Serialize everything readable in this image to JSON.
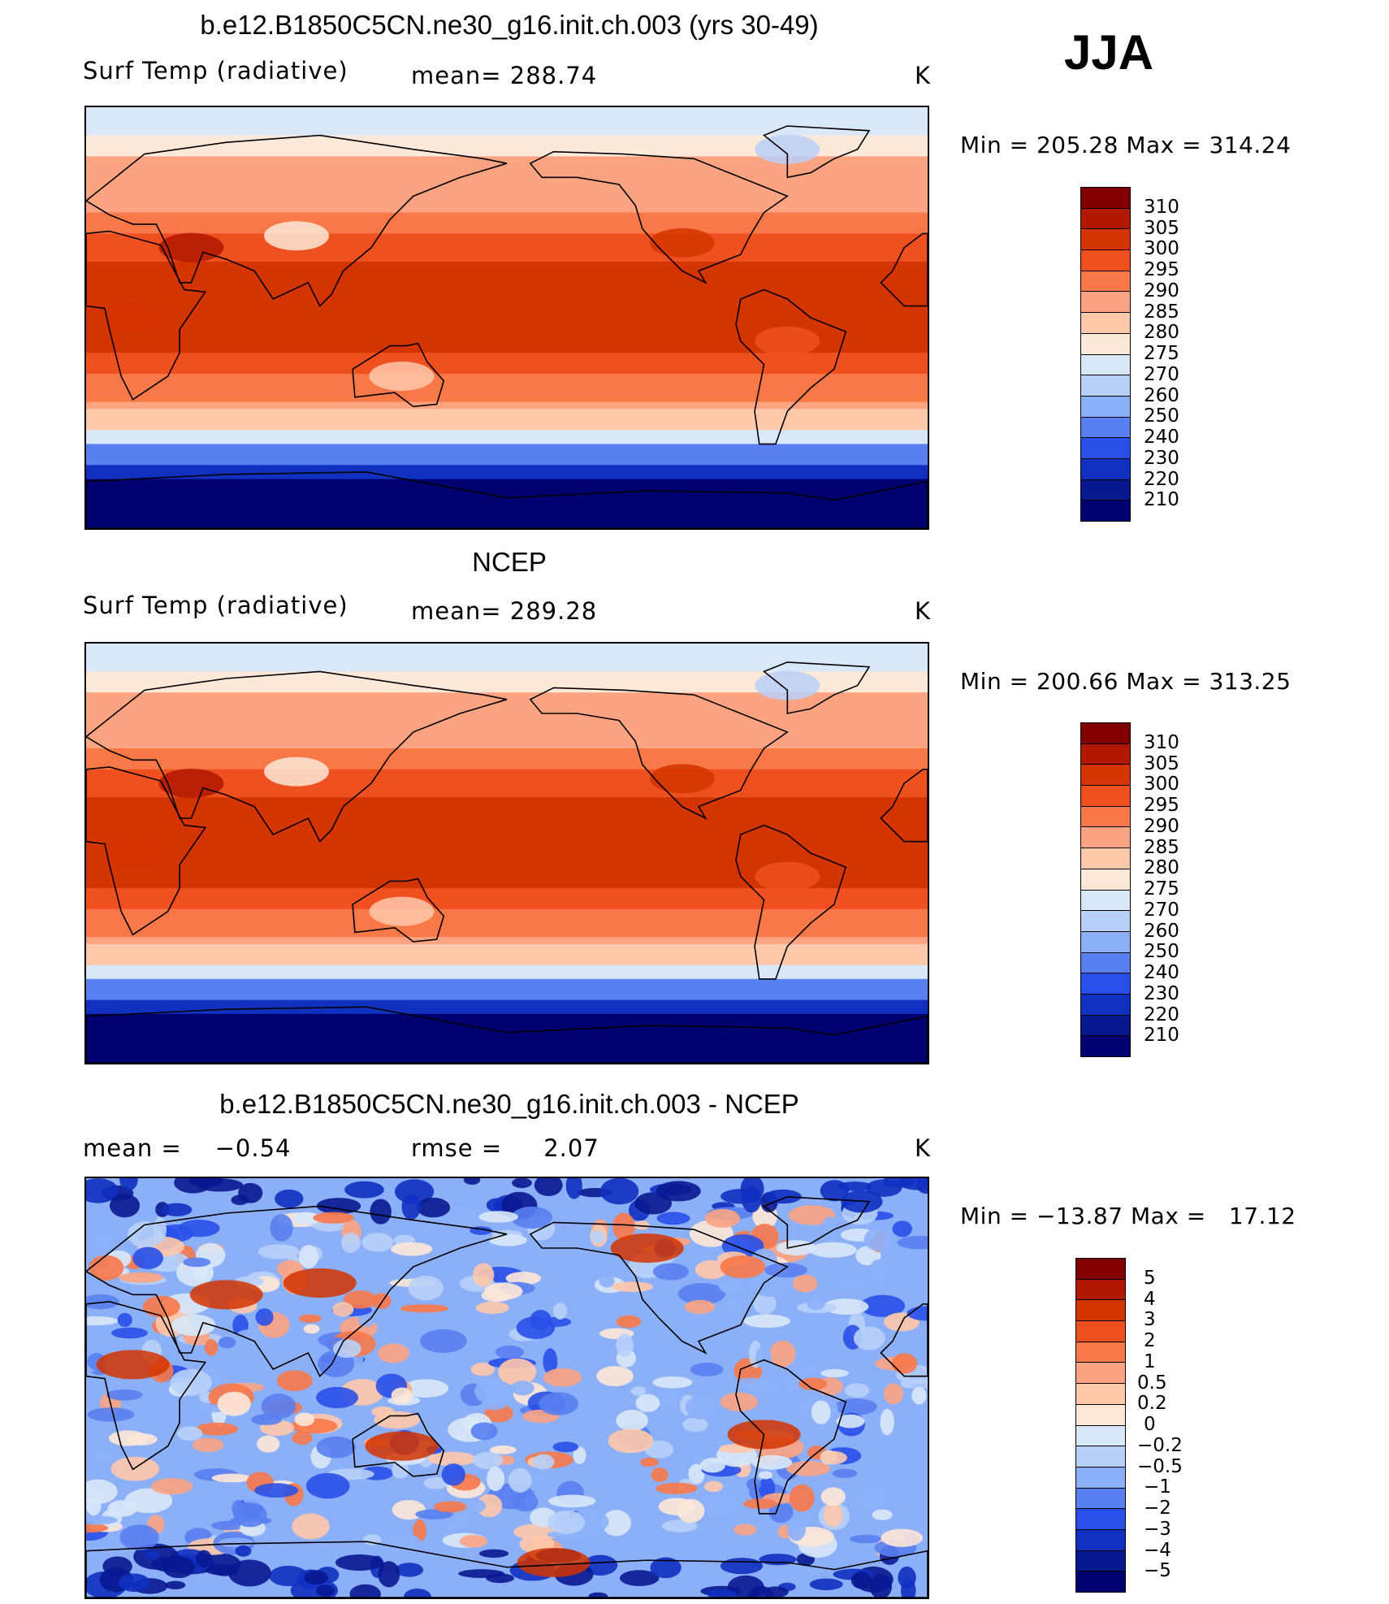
{
  "season": "JJA",
  "panels": [
    {
      "title": "b.e12.B1850C5CN.ne30_g16.init.ch.003 (yrs 30-49)",
      "left_label": "Surf Temp (radiative)",
      "stat_label": "mean= 288.74",
      "units": "K",
      "minmax": "Min = 205.28 Max = 314.24",
      "legend": {
        "labels": [
          "310",
          "305",
          "300",
          "295",
          "290",
          "285",
          "280",
          "275",
          "270",
          "260",
          "250",
          "240",
          "230",
          "220",
          "210"
        ],
        "colors": [
          "#800000",
          "#b01800",
          "#d43400",
          "#f05020",
          "#f87848",
          "#fca482",
          "#fec8aa",
          "#fee8d8",
          "#d8e8f8",
          "#b8d0f8",
          "#8cb0f8",
          "#5880f0",
          "#2850e8",
          "#1030c0",
          "#081890",
          "#000070"
        ]
      },
      "map_type": "absolute"
    },
    {
      "title": "NCEP",
      "left_label": "Surf Temp (radiative)",
      "stat_label": "mean= 289.28",
      "units": "K",
      "minmax": "Min = 200.66 Max = 313.25",
      "legend": {
        "labels": [
          "310",
          "305",
          "300",
          "295",
          "290",
          "285",
          "280",
          "275",
          "270",
          "260",
          "250",
          "240",
          "230",
          "220",
          "210"
        ],
        "colors": [
          "#800000",
          "#b01800",
          "#d43400",
          "#f05020",
          "#f87848",
          "#fca482",
          "#fec8aa",
          "#fee8d8",
          "#d8e8f8",
          "#b8d0f8",
          "#8cb0f8",
          "#5880f0",
          "#2850e8",
          "#1030c0",
          "#081890",
          "#000070"
        ]
      },
      "map_type": "absolute"
    },
    {
      "title": "b.e12.B1850C5CN.ne30_g16.init.ch.003 - NCEP",
      "left_label": "mean =    −0.54",
      "stat_label": "rmse =     2.07",
      "units": "K",
      "minmax": "Min = −13.87 Max =   17.12",
      "legend": {
        "labels": [
          "5",
          "4",
          "3",
          "2",
          "1",
          "0.5",
          "0.2",
          "0",
          "−0.2",
          "−0.5",
          "−1",
          "−2",
          "−3",
          "−4",
          "−5"
        ],
        "colors": [
          "#800000",
          "#b01800",
          "#d43400",
          "#f05020",
          "#f87848",
          "#fca482",
          "#fec8aa",
          "#fee8d8",
          "#d8e8f8",
          "#b8d0f8",
          "#8cb0f8",
          "#5880f0",
          "#2850e8",
          "#1030c0",
          "#081890",
          "#000070"
        ]
      },
      "map_type": "difference"
    }
  ]
}
